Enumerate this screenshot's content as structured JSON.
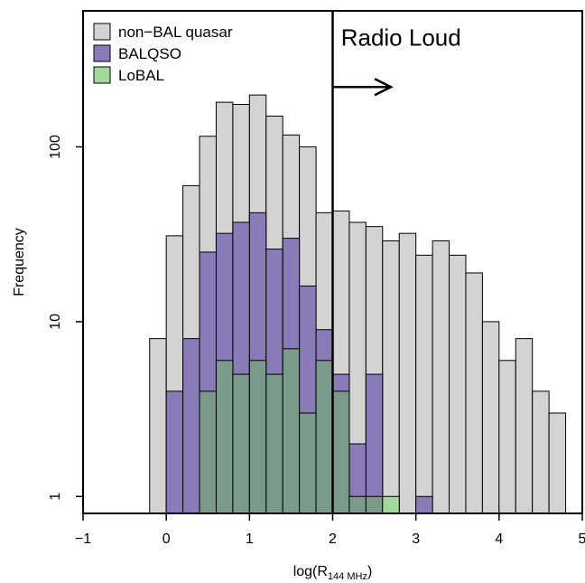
{
  "chart_data": {
    "type": "bar",
    "subtype": "histogram",
    "xlabel_prefix": "log(R",
    "xlabel_sub": "144 MHz",
    "xlabel_suffix": ")",
    "ylabel": "Frequency",
    "xlim": [
      -1,
      5
    ],
    "ylim": [
      0.8,
      600
    ],
    "yscale": "log",
    "xticks": [
      -1,
      0,
      1,
      2,
      3,
      4,
      5
    ],
    "yticks": [
      1,
      10,
      100
    ],
    "grid": false,
    "legend_position": "top-left",
    "bin_width": 0.2,
    "series": [
      {
        "name": "non−BAL quasar",
        "color": "#d3d3d3",
        "bins": [
          {
            "x0": -0.2,
            "count": 8
          },
          {
            "x0": 0.0,
            "count": 31
          },
          {
            "x0": 0.2,
            "count": 60
          },
          {
            "x0": 0.4,
            "count": 115
          },
          {
            "x0": 0.6,
            "count": 180
          },
          {
            "x0": 0.8,
            "count": 175
          },
          {
            "x0": 1.0,
            "count": 198
          },
          {
            "x0": 1.2,
            "count": 150
          },
          {
            "x0": 1.4,
            "count": 117
          },
          {
            "x0": 1.6,
            "count": 100
          },
          {
            "x0": 1.8,
            "count": 42
          },
          {
            "x0": 2.0,
            "count": 43
          },
          {
            "x0": 2.2,
            "count": 37
          },
          {
            "x0": 2.4,
            "count": 35
          },
          {
            "x0": 2.6,
            "count": 29
          },
          {
            "x0": 2.8,
            "count": 32
          },
          {
            "x0": 3.0,
            "count": 24
          },
          {
            "x0": 3.2,
            "count": 29
          },
          {
            "x0": 3.4,
            "count": 24
          },
          {
            "x0": 3.6,
            "count": 19
          },
          {
            "x0": 3.8,
            "count": 10
          },
          {
            "x0": 4.0,
            "count": 6
          },
          {
            "x0": 4.2,
            "count": 8
          },
          {
            "x0": 4.4,
            "count": 4
          },
          {
            "x0": 4.6,
            "count": 3
          }
        ]
      },
      {
        "name": "BALQSO",
        "color": "#8b7ab8",
        "bins": [
          {
            "x0": 0.0,
            "count": 4
          },
          {
            "x0": 0.2,
            "count": 8
          },
          {
            "x0": 0.4,
            "count": 25
          },
          {
            "x0": 0.6,
            "count": 32
          },
          {
            "x0": 0.8,
            "count": 37
          },
          {
            "x0": 1.0,
            "count": 42
          },
          {
            "x0": 1.2,
            "count": 26
          },
          {
            "x0": 1.4,
            "count": 30
          },
          {
            "x0": 1.6,
            "count": 16
          },
          {
            "x0": 1.8,
            "count": 9
          },
          {
            "x0": 2.0,
            "count": 5
          },
          {
            "x0": 2.2,
            "count": 2
          },
          {
            "x0": 2.4,
            "count": 5
          },
          {
            "x0": 3.0,
            "count": 1
          }
        ]
      },
      {
        "name": "LoBAL",
        "color": "#a3d99a",
        "bins": [
          {
            "x0": 0.4,
            "count": 4
          },
          {
            "x0": 0.6,
            "count": 6
          },
          {
            "x0": 0.8,
            "count": 5
          },
          {
            "x0": 1.0,
            "count": 6
          },
          {
            "x0": 1.2,
            "count": 5
          },
          {
            "x0": 1.4,
            "count": 7
          },
          {
            "x0": 1.6,
            "count": 3
          },
          {
            "x0": 1.8,
            "count": 6
          },
          {
            "x0": 2.0,
            "count": 4
          },
          {
            "x0": 2.2,
            "count": 1
          },
          {
            "x0": 2.4,
            "count": 1
          },
          {
            "x0": 2.6,
            "count": 1
          }
        ]
      }
    ],
    "overlap_color": "#7a9a8a",
    "annotations": [
      {
        "type": "vline",
        "x": 2
      },
      {
        "type": "text",
        "text": "Radio Loud",
        "x": 2.1,
        "y": 380
      },
      {
        "type": "arrow",
        "x_from": 2.0,
        "x_to": 2.7,
        "y": 220
      }
    ]
  }
}
